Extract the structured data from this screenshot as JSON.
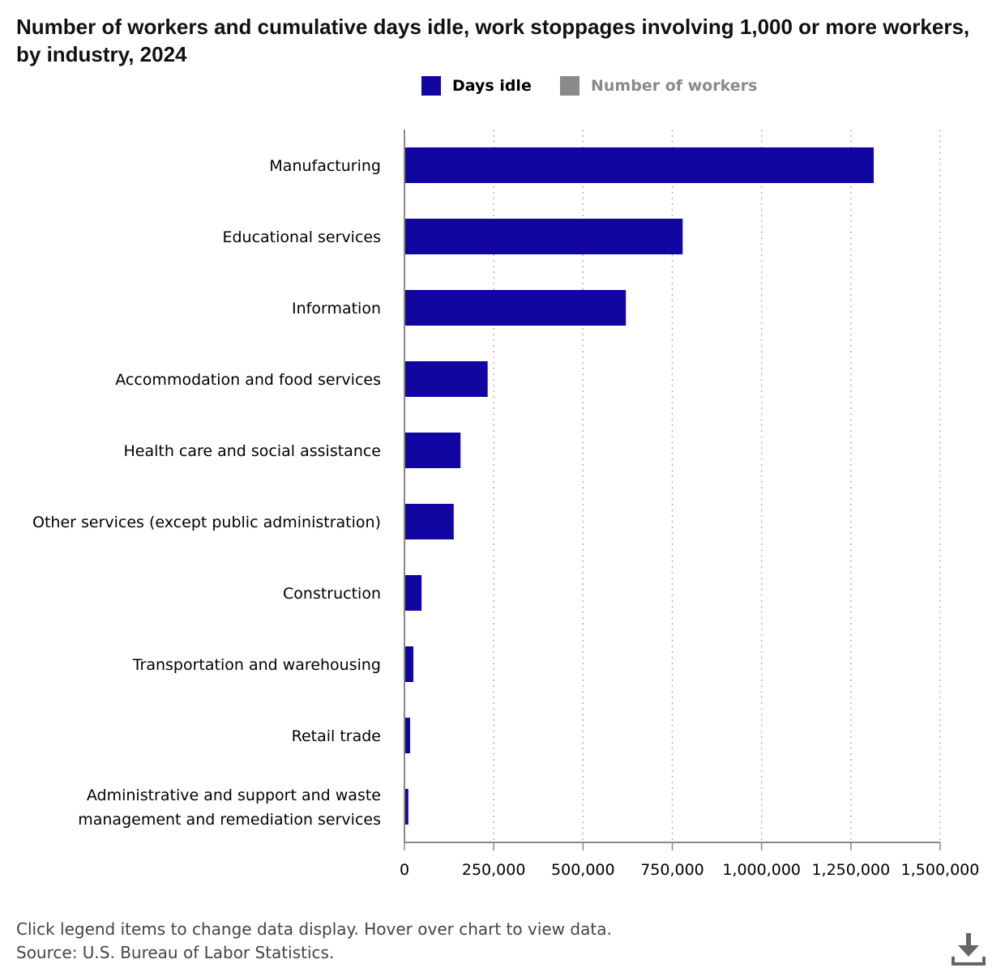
{
  "title": "Number of workers and cumulative days idle, work stoppages involving 1,000 or more workers, by industry, 2024",
  "legend": [
    {
      "label": "Days idle",
      "color": "#1206a3",
      "active": true
    },
    {
      "label": "Number of workers",
      "color": "#8a8a8a",
      "active": false
    }
  ],
  "footer": {
    "note": "Click legend items to change data display. Hover over chart to view data.",
    "source": "Source: U.S. Bureau of Labor Statistics."
  },
  "download_icon": "download-icon",
  "chart_data": {
    "type": "bar",
    "orientation": "horizontal",
    "title": "Number of workers and cumulative days idle, work stoppages involving 1,000 or more workers, by industry, 2024",
    "categories": [
      "Manufacturing",
      "Educational services",
      "Information",
      "Accommodation and food services",
      "Health care and social assistance",
      "Other services (except public administration)",
      "Construction",
      "Transportation and warehousing",
      "Retail trade",
      "Administrative and support and waste management and remediation services"
    ],
    "category_lines": [
      [
        "Manufacturing"
      ],
      [
        "Educational services"
      ],
      [
        "Information"
      ],
      [
        "Accommodation and food services"
      ],
      [
        "Health care and social assistance"
      ],
      [
        "Other services (except public administration)"
      ],
      [
        "Construction"
      ],
      [
        "Transportation and warehousing"
      ],
      [
        "Retail trade"
      ],
      [
        "Administrative and support and waste",
        "management and remediation services"
      ]
    ],
    "series": [
      {
        "name": "Days idle",
        "color": "#1206a3",
        "values": [
          1314000,
          779000,
          620000,
          233000,
          157000,
          138000,
          48000,
          25000,
          16000,
          11000
        ]
      }
    ],
    "xlim": [
      0,
      1500000
    ],
    "xticks": [
      0,
      250000,
      500000,
      750000,
      1000000,
      1250000,
      1500000
    ],
    "xtick_labels": [
      "0",
      "250,000",
      "500,000",
      "750,000",
      "1,000,000",
      "1,250,000",
      "1,500,000"
    ],
    "grid": "vertical dotted"
  }
}
